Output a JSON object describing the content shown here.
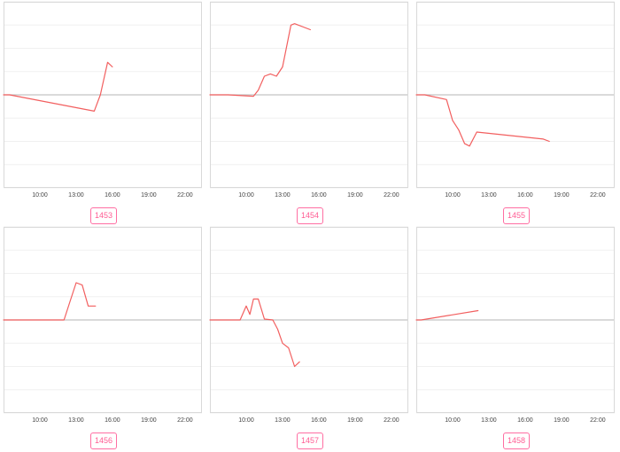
{
  "colors": {
    "series": "#f25f5f",
    "badge": "#ff6ea2"
  },
  "x_ticks": [
    "10:00",
    "13:00",
    "16:00",
    "19:00",
    "22:00"
  ],
  "chart_data": [
    {
      "type": "line",
      "title": "1453",
      "series": [
        {
          "values": [
            [
              7.0,
              0
            ],
            [
              7.5,
              0
            ],
            [
              14.5,
              -3.5
            ],
            [
              15.0,
              0
            ],
            [
              15.6,
              7
            ],
            [
              16.0,
              6
            ]
          ]
        }
      ]
    },
    {
      "type": "line",
      "title": "1454",
      "series": [
        {
          "values": [
            [
              7.0,
              0
            ],
            [
              8.5,
              0
            ],
            [
              10.6,
              -0.3
            ],
            [
              11.0,
              1
            ],
            [
              11.5,
              4
            ],
            [
              12.0,
              4.5
            ],
            [
              12.5,
              4
            ],
            [
              13.0,
              6
            ],
            [
              13.7,
              15
            ],
            [
              14.0,
              15.3
            ],
            [
              15.3,
              14
            ]
          ]
        }
      ]
    },
    {
      "type": "line",
      "title": "1455",
      "series": [
        {
          "values": [
            [
              7.0,
              0
            ],
            [
              7.7,
              0
            ],
            [
              9.5,
              -1
            ],
            [
              10.0,
              -5.5
            ],
            [
              10.5,
              -7.5
            ],
            [
              11.0,
              -10.5
            ],
            [
              11.4,
              -11
            ],
            [
              12.0,
              -8
            ],
            [
              17.5,
              -9.5
            ],
            [
              18.0,
              -10
            ]
          ]
        }
      ]
    },
    {
      "type": "line",
      "title": "1456",
      "series": [
        {
          "values": [
            [
              7.0,
              0
            ],
            [
              12.0,
              0
            ],
            [
              12.5,
              4
            ],
            [
              13.0,
              8
            ],
            [
              13.5,
              7.5
            ],
            [
              14.0,
              3
            ],
            [
              14.6,
              3
            ]
          ]
        }
      ]
    },
    {
      "type": "line",
      "title": "1457",
      "series": [
        {
          "values": [
            [
              7.0,
              0
            ],
            [
              9.5,
              0
            ],
            [
              10.0,
              3
            ],
            [
              10.3,
              1.2
            ],
            [
              10.6,
              4.5
            ],
            [
              11.0,
              4.5
            ],
            [
              11.5,
              0.2
            ],
            [
              12.2,
              0
            ],
            [
              12.6,
              -2
            ],
            [
              13.0,
              -5
            ],
            [
              13.5,
              -6
            ],
            [
              14.0,
              -10
            ],
            [
              14.4,
              -9
            ]
          ]
        }
      ]
    },
    {
      "type": "line",
      "title": "1458",
      "series": [
        {
          "values": [
            [
              7.0,
              0
            ],
            [
              7.4,
              0
            ],
            [
              12.1,
              2
            ]
          ]
        }
      ]
    }
  ]
}
